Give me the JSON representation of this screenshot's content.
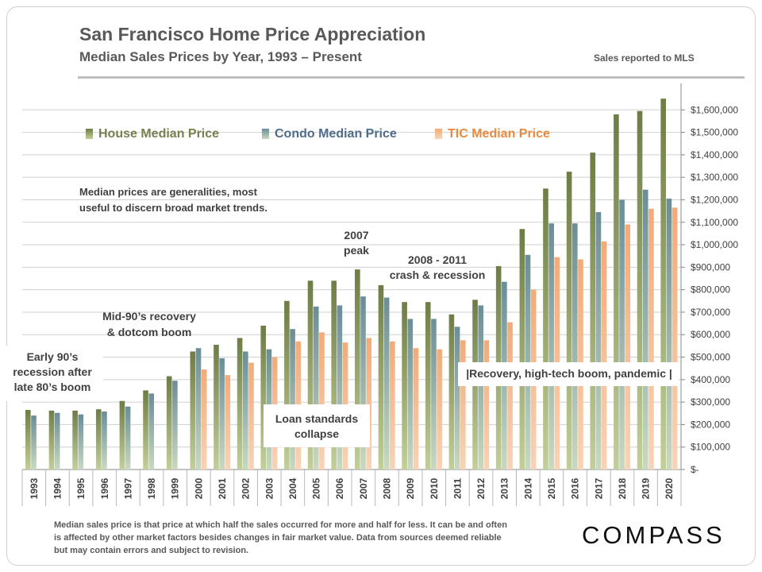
{
  "header": {
    "title": "San Francisco Home Price Appreciation",
    "subtitle": "Median Sales Prices by Year, 1993 – Present",
    "source_note": "Sales reported to MLS"
  },
  "footer": {
    "footnote": "Median sales price is that price at which half the sales occurred for more and half for less. It can be and often is affected by other market factors besides changes in fair market value. Data from sources deemed reliable but may contain errors and subject to revision.",
    "logo_text": "COMPASS"
  },
  "chart_data": {
    "type": "bar",
    "title": "San Francisco Home Price Appreciation",
    "subtitle": "Median Sales Prices by Year, 1993 – Present",
    "xlabel": "",
    "ylabel": "",
    "ylim": [
      0,
      1700000
    ],
    "yticks": [
      0,
      100000,
      200000,
      300000,
      400000,
      500000,
      600000,
      700000,
      800000,
      900000,
      1000000,
      1100000,
      1200000,
      1300000,
      1400000,
      1500000,
      1600000
    ],
    "ytick_labels": [
      "$-",
      "$100,000",
      "$200,000",
      "$300,000",
      "$400,000",
      "$500,000",
      "$600,000",
      "$700,000",
      "$800,000",
      "$900,000",
      "$1,000,000",
      "$1,100,000",
      "$1,200,000",
      "$1,300,000",
      "$1,400,000",
      "$1,500,000",
      "$1,600,000"
    ],
    "y_axis_side": "right",
    "grid": true,
    "legend_position": "top-left",
    "categories": [
      "1993",
      "1994",
      "1995",
      "1996",
      "1997",
      "1998",
      "1999",
      "2000",
      "2001",
      "2002",
      "2003",
      "2004",
      "2005",
      "2006",
      "2007",
      "2008",
      "2009",
      "2010",
      "2011",
      "2012",
      "2013",
      "2014",
      "2015",
      "2016",
      "2017",
      "2018",
      "2019",
      "2020"
    ],
    "series": [
      {
        "name": "House Median Price",
        "color": "#77874f",
        "label_color": "#7a7f50",
        "values": [
          265000,
          262000,
          262000,
          268000,
          305000,
          352000,
          415000,
          525000,
          555000,
          585000,
          640000,
          750000,
          840000,
          840000,
          890000,
          820000,
          745000,
          745000,
          690000,
          755000,
          905000,
          1070000,
          1250000,
          1325000,
          1410000,
          1580000,
          1595000,
          1650000
        ]
      },
      {
        "name": "Condo Median Price",
        "color": "#6d8f98",
        "label_color": "#4f6d8a",
        "values": [
          240000,
          252000,
          245000,
          258000,
          280000,
          338000,
          395000,
          540000,
          495000,
          525000,
          535000,
          625000,
          725000,
          730000,
          770000,
          765000,
          670000,
          670000,
          635000,
          730000,
          835000,
          955000,
          1095000,
          1095000,
          1145000,
          1200000,
          1245000,
          1205000
        ]
      },
      {
        "name": "TIC Median Price",
        "color": "#f4b183",
        "label_color": "#e98a3f",
        "values": [
          null,
          null,
          null,
          null,
          null,
          null,
          null,
          445000,
          420000,
          475000,
          500000,
          570000,
          610000,
          565000,
          585000,
          570000,
          540000,
          535000,
          575000,
          575000,
          655000,
          800000,
          945000,
          935000,
          1015000,
          1090000,
          1160000,
          1165000
        ]
      }
    ],
    "annotations": [
      {
        "lines": [
          "Median prices are generalities, most",
          "useful to discern broad market trends."
        ]
      },
      {
        "lines": [
          "Early 90’s",
          "recession after",
          "late 80’s boom"
        ]
      },
      {
        "lines": [
          "Mid-90’s recovery",
          "& dotcom boom"
        ]
      },
      {
        "lines": [
          "2007",
          "peak"
        ]
      },
      {
        "lines": [
          "2008 - 2011",
          "crash & recession"
        ]
      },
      {
        "lines": [
          "Loan standards",
          "collapse"
        ]
      },
      {
        "lines": [
          "|Recovery, high-tech boom, pandemic |"
        ]
      }
    ]
  }
}
